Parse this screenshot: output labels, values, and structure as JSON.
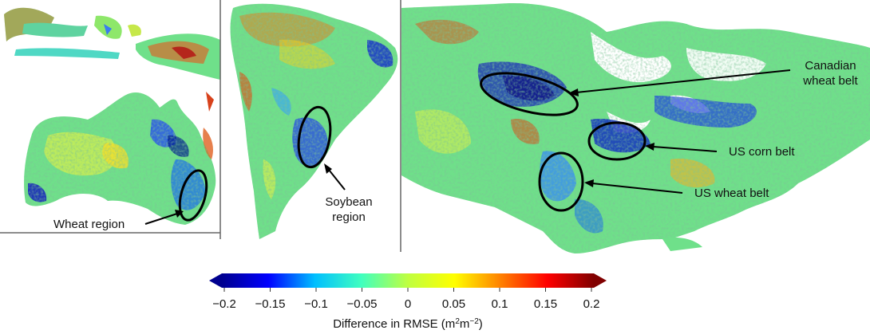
{
  "panels": [
    {
      "id": "australia",
      "annotations": [
        {
          "text": "Wheat region"
        }
      ]
    },
    {
      "id": "south-america",
      "annotations": [
        {
          "text": "Soybean",
          "text2": "region"
        }
      ]
    },
    {
      "id": "north-america",
      "annotations": [
        {
          "text": "Canadian",
          "text2": "wheat belt"
        },
        {
          "text": "US corn belt"
        },
        {
          "text": "US wheat belt"
        }
      ]
    }
  ],
  "colorbar": {
    "min": -0.2,
    "max": 0.2,
    "ticks": [
      "−0.2",
      "−0.15",
      "−0.1",
      "−0.05",
      "0",
      "0.05",
      "0.1",
      "0.15",
      "0.2"
    ],
    "label": "Difference in RMSE (m",
    "label_sup1": "2",
    "label_mid": "m",
    "label_sup2": "−2",
    "label_end": ")",
    "colors": [
      "#00008f",
      "#0000ff",
      "#00bfff",
      "#40ffbf",
      "#bfff40",
      "#ffff00",
      "#ff8000",
      "#ff0000",
      "#800000"
    ]
  },
  "colors": {
    "land_base": "#6fe08a",
    "water": "#ffffff",
    "panel_border": "#666666",
    "annotation": "#000000"
  }
}
